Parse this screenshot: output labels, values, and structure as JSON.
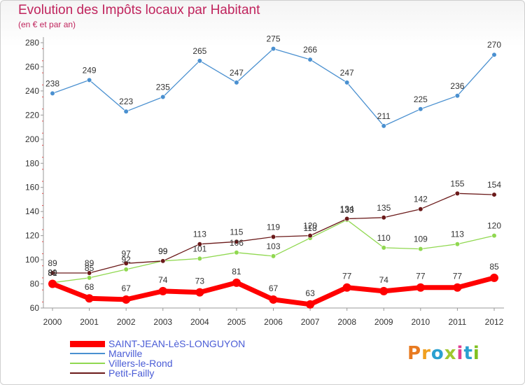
{
  "chart_data": {
    "type": "line",
    "title": "Evolution des Impôts locaux par Habitant",
    "subtitle": "(en € et par an)",
    "categories": [
      "2000",
      "2001",
      "2002",
      "2003",
      "2004",
      "2005",
      "2006",
      "2007",
      "2008",
      "2009",
      "2010",
      "2011",
      "2012"
    ],
    "ylim": [
      60,
      280
    ],
    "yticks": [
      60,
      80,
      100,
      120,
      140,
      160,
      180,
      200,
      220,
      240,
      260,
      280
    ],
    "grid": false,
    "legend_position": "bottom-left",
    "series": [
      {
        "name": "SAINT-JEAN-LèS-LONGUYON",
        "color": "#ff0000",
        "values": [
          80,
          68,
          67,
          74,
          73,
          81,
          67,
          63,
          77,
          74,
          77,
          77,
          85
        ]
      },
      {
        "name": "Marville",
        "color": "#4a90d0",
        "values": [
          238,
          249,
          223,
          235,
          265,
          247,
          275,
          266,
          247,
          211,
          225,
          236,
          270
        ]
      },
      {
        "name": "Villers-le-Rond",
        "color": "#90d850",
        "values": [
          81,
          85,
          92,
          99,
          101,
          106,
          103,
          118,
          133,
          110,
          109,
          113,
          120
        ]
      },
      {
        "name": "Petit-Failly",
        "color": "#6b1a1a",
        "values": [
          89,
          89,
          97,
          99,
          113,
          115,
          119,
          120,
          134,
          135,
          142,
          155,
          154
        ]
      }
    ]
  },
  "logo": {
    "text": "Proxiti",
    "colors": [
      "#e87a20",
      "#f0a020",
      "#2aa0d0",
      "#a0c830",
      "#e04090",
      "#2aa0d0",
      "#80c020"
    ]
  }
}
